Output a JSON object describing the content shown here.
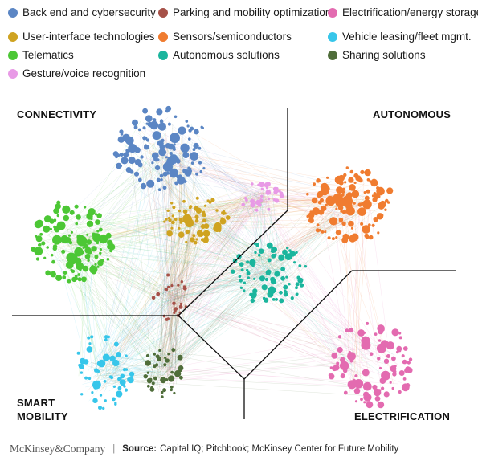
{
  "legend": [
    {
      "label": "Back end and cybersecurity",
      "color": "#5b86c4"
    },
    {
      "label": "Parking and mobility optimization",
      "color": "#a65148"
    },
    {
      "label": "Electrification/energy storage",
      "color": "#e36bb0"
    },
    {
      "label": "User-interface technologies",
      "color": "#cfa321"
    },
    {
      "label": "Sensors/semiconductors",
      "color": "#f07c30"
    },
    {
      "label": "Vehicle leasing/fleet mgmt.",
      "color": "#37c6ea"
    },
    {
      "label": "Telematics",
      "color": "#4cc735"
    },
    {
      "label": "Autonomous solutions",
      "color": "#1bb59d"
    },
    {
      "label": "Sharing solutions",
      "color": "#4f6d3a"
    },
    {
      "label": "Gesture/voice recognition",
      "color": "#e89ae6"
    }
  ],
  "regions": {
    "connectivity": "CONNECTIVITY",
    "autonomous": "AUTONOMOUS",
    "smart_mobility_line1": "SMART",
    "smart_mobility_line2": "MOBILITY",
    "electrification": "ELECTRIFICATION"
  },
  "footer": {
    "brand": "McKinsey&Company",
    "separator": "|",
    "source_label": "Source:",
    "source_text": "Capital IQ; Pitchbook; McKinsey Center for Future Mobility"
  }
}
